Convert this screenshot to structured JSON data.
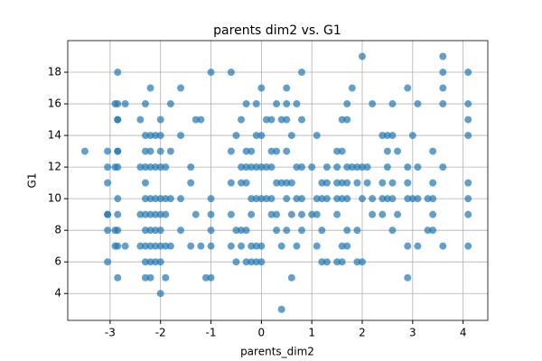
{
  "chart_data": {
    "type": "scatter",
    "title": "parents dim2 vs. G1",
    "x_label": "parents_dim2",
    "y_label": "G1",
    "color": "#1f77b4",
    "grid": true,
    "xlim": [
      -3.84,
      4.49
    ],
    "ylim": [
      2.3,
      20
    ],
    "xticks": [
      -3,
      -2,
      -1,
      0,
      1,
      2,
      3,
      4
    ],
    "yticks": [
      4,
      6,
      8,
      10,
      12,
      14,
      16,
      18
    ],
    "x": [
      -3.5,
      -3.05,
      -3.05,
      -3.05,
      -3.05,
      -3.05,
      -3.05,
      -3.05,
      -2.9,
      -2.9,
      -2.9,
      -2.9,
      -2.85,
      -2.85,
      -2.85,
      -2.85,
      -2.85,
      -2.85,
      -2.85,
      -2.85,
      -2.85,
      -2.85,
      -2.85,
      -2.85,
      -2.7,
      -2.7,
      -2.4,
      -2.4,
      -2.4,
      -2.4,
      -2.3,
      -2.3,
      -2.3,
      -2.3,
      -2.3,
      -2.3,
      -2.3,
      -2.3,
      -2.3,
      -2.3,
      -2.3,
      -2.2,
      -2.2,
      -2.2,
      -2.2,
      -2.2,
      -2.2,
      -2.2,
      -2.2,
      -2.2,
      -2.2,
      -2.1,
      -2.1,
      -2.1,
      -2.1,
      -2.1,
      -2.1,
      -2.1,
      -2.0,
      -2.0,
      -2.0,
      -2.0,
      -2.0,
      -2.0,
      -2.0,
      -2.0,
      -2.0,
      -2.0,
      -1.9,
      -1.9,
      -1.9,
      -1.9,
      -1.9,
      -1.8,
      -1.8,
      -1.8,
      -1.8,
      -1.6,
      -1.6,
      -1.6,
      -1.6,
      -1.4,
      -1.4,
      -1.4,
      -1.3,
      -1.3,
      -1.2,
      -1.2,
      -1.1,
      -1.0,
      -1.0,
      -1.0,
      -1.0,
      -1.0,
      -1.0,
      -0.6,
      -0.6,
      -0.6,
      -0.6,
      -0.6,
      -0.5,
      -0.5,
      -0.5,
      -0.4,
      -0.4,
      -0.4,
      -0.4,
      -0.4,
      -0.3,
      -0.3,
      -0.3,
      -0.3,
      -0.3,
      -0.3,
      -0.2,
      -0.2,
      -0.2,
      -0.2,
      -0.2,
      -0.2,
      -0.1,
      -0.1,
      -0.1,
      -0.1,
      -0.1,
      -0.1,
      0.0,
      0.0,
      0.0,
      0.0,
      0.0,
      0.0,
      0.1,
      0.1,
      0.1,
      0.2,
      0.2,
      0.2,
      0.2,
      0.2,
      0.3,
      0.3,
      0.3,
      0.3,
      0.3,
      0.4,
      0.4,
      0.4,
      0.4,
      0.5,
      0.5,
      0.5,
      0.5,
      0.5,
      0.5,
      0.5,
      0.6,
      0.6,
      0.6,
      0.6,
      0.7,
      0.7,
      0.7,
      0.7,
      0.8,
      0.8,
      0.8,
      0.8,
      0.8,
      0.8,
      1.0,
      1.0,
      1.1,
      1.1,
      1.1,
      1.1,
      1.2,
      1.2,
      1.2,
      1.2,
      1.3,
      1.3,
      1.3,
      1.3,
      1.5,
      1.5,
      1.5,
      1.5,
      1.5,
      1.5,
      1.6,
      1.6,
      1.6,
      1.6,
      1.6,
      1.6,
      1.7,
      1.7,
      1.7,
      1.7,
      1.7,
      1.7,
      1.7,
      1.8,
      1.8,
      1.9,
      1.9,
      1.9,
      1.9,
      2.0,
      2.0,
      2.0,
      2.0,
      2.1,
      2.1,
      2.2,
      2.2,
      2.2,
      2.4,
      2.4,
      2.4,
      2.4,
      2.5,
      2.5,
      2.5,
      2.5,
      2.6,
      2.6,
      2.6,
      2.6,
      2.6,
      2.7,
      2.7,
      2.9,
      2.9,
      2.9,
      2.9,
      2.9,
      2.9,
      3.0,
      3.0,
      3.1,
      3.1,
      3.1,
      3.1,
      3.3,
      3.3,
      3.4,
      3.4,
      3.4,
      3.4,
      3.4,
      3.6,
      3.6,
      3.6,
      3.6,
      3.6,
      3.6,
      4.1,
      4.1,
      4.1,
      4.1,
      4.1,
      4.1,
      4.1,
      4.1
    ],
    "values": [
      13,
      13,
      12,
      11,
      9,
      8,
      6,
      9,
      12,
      16,
      7,
      8,
      16,
      18,
      15,
      13,
      12,
      10,
      9,
      8,
      7,
      5,
      15,
      13,
      16,
      7,
      15,
      12,
      9,
      7,
      16,
      14,
      13,
      12,
      11,
      10,
      9,
      8,
      7,
      6,
      5,
      17,
      14,
      13,
      12,
      10,
      9,
      8,
      7,
      6,
      5,
      14,
      12,
      10,
      9,
      8,
      7,
      6,
      15,
      14,
      13,
      12,
      10,
      9,
      8,
      7,
      6,
      4,
      12,
      10,
      9,
      7,
      5,
      16,
      13,
      10,
      7,
      17,
      14,
      10,
      8,
      12,
      11,
      7,
      15,
      9,
      15,
      7,
      5,
      18,
      10,
      9,
      8,
      7,
      5,
      18,
      13,
      11,
      9,
      7,
      14,
      8,
      6,
      15,
      12,
      11,
      8,
      7,
      16,
      13,
      12,
      11,
      8,
      6,
      13,
      12,
      10,
      9,
      7,
      6,
      16,
      14,
      12,
      10,
      7,
      6,
      17,
      14,
      12,
      10,
      7,
      6,
      15,
      12,
      10,
      15,
      13,
      12,
      10,
      9,
      16,
      13,
      11,
      9,
      8,
      15,
      11,
      7,
      3,
      17,
      16,
      15,
      13,
      11,
      10,
      8,
      14,
      11,
      9,
      5,
      16,
      12,
      10,
      7,
      18,
      15,
      12,
      10,
      9,
      8,
      12,
      9,
      14,
      10,
      9,
      7,
      11,
      10,
      8,
      6,
      12,
      11,
      10,
      6,
      13,
      12,
      11,
      10,
      9,
      6,
      15,
      13,
      11,
      10,
      7,
      6,
      16,
      15,
      12,
      11,
      10,
      8,
      7,
      17,
      12,
      12,
      11,
      8,
      6,
      19,
      12,
      10,
      6,
      12,
      11,
      16,
      10,
      9,
      14,
      11,
      10,
      9,
      14,
      13,
      12,
      10,
      16,
      14,
      11,
      10,
      8,
      13,
      9,
      17,
      12,
      11,
      10,
      7,
      5,
      14,
      10,
      16,
      12,
      10,
      7,
      10,
      8,
      13,
      11,
      10,
      9,
      8,
      19,
      18,
      17,
      16,
      12,
      7,
      18,
      16,
      15,
      14,
      11,
      10,
      9,
      7
    ]
  }
}
